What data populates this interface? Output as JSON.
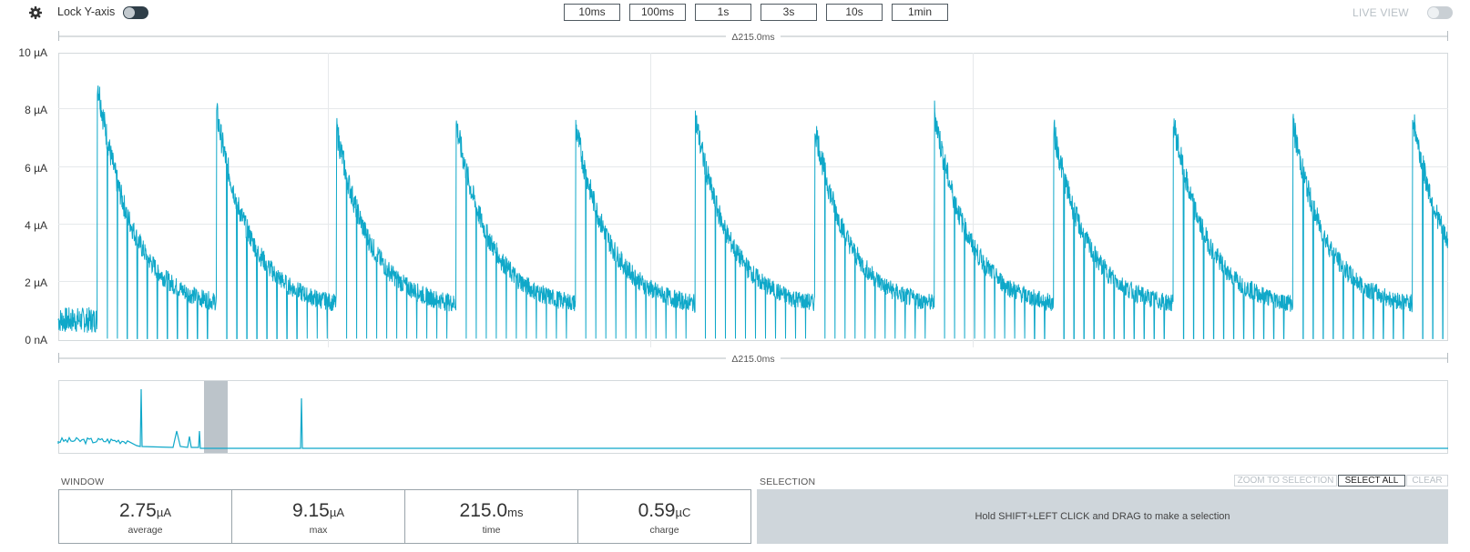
{
  "toolbar": {
    "lock_label": "Lock Y-axis",
    "lock_on": true,
    "window_buttons": [
      "10ms",
      "100ms",
      "1s",
      "3s",
      "10s",
      "1min"
    ],
    "live_label": "LIVE VIEW",
    "live_on": false
  },
  "main_chart": {
    "delta_label": "Δ215.0ms",
    "y_ticks": [
      "0 nA",
      "2 µA",
      "4 µA",
      "6 µA",
      "8 µA",
      "10 µA"
    ],
    "line_color": "#0fa8c9"
  },
  "chart_data": {
    "type": "line",
    "x_window_ms": 215.0,
    "ylim_uA": [
      0,
      10
    ],
    "y_unit": "µA",
    "series_color": "#0fa8c9",
    "pulse_start_ms": [
      6.0,
      24.5,
      43.0,
      61.5,
      80.0,
      98.5,
      117.0,
      135.5,
      154.0,
      172.5,
      191.0,
      209.5
    ],
    "pulse_peak_uA": [
      9.1,
      7.9,
      7.4,
      7.6,
      7.5,
      7.8,
      7.5,
      8.0,
      7.3,
      7.6,
      7.5,
      7.8
    ],
    "decay_floor_uA": 1.1,
    "pre_pulse_level_uA": 0.7,
    "dips_per_pulse": 11
  },
  "overview": {
    "line_color": "#0fa8c9",
    "selection_color": "#bcc4ca"
  },
  "window": {
    "title": "WINDOW",
    "stats": [
      {
        "value": "2.75",
        "unit": "µA",
        "label": "average"
      },
      {
        "value": "9.15",
        "unit": "µA",
        "label": "max"
      },
      {
        "value": "215.0",
        "unit": "ms",
        "label": "time"
      },
      {
        "value": "0.59",
        "unit": "µC",
        "label": "charge"
      }
    ]
  },
  "selection": {
    "title": "SELECTION",
    "zoom_label": "ZOOM TO SELECTION",
    "select_all_label": "SELECT ALL",
    "clear_label": "CLEAR",
    "hint": "Hold SHIFT+LEFT CLICK and DRAG to make a selection"
  }
}
